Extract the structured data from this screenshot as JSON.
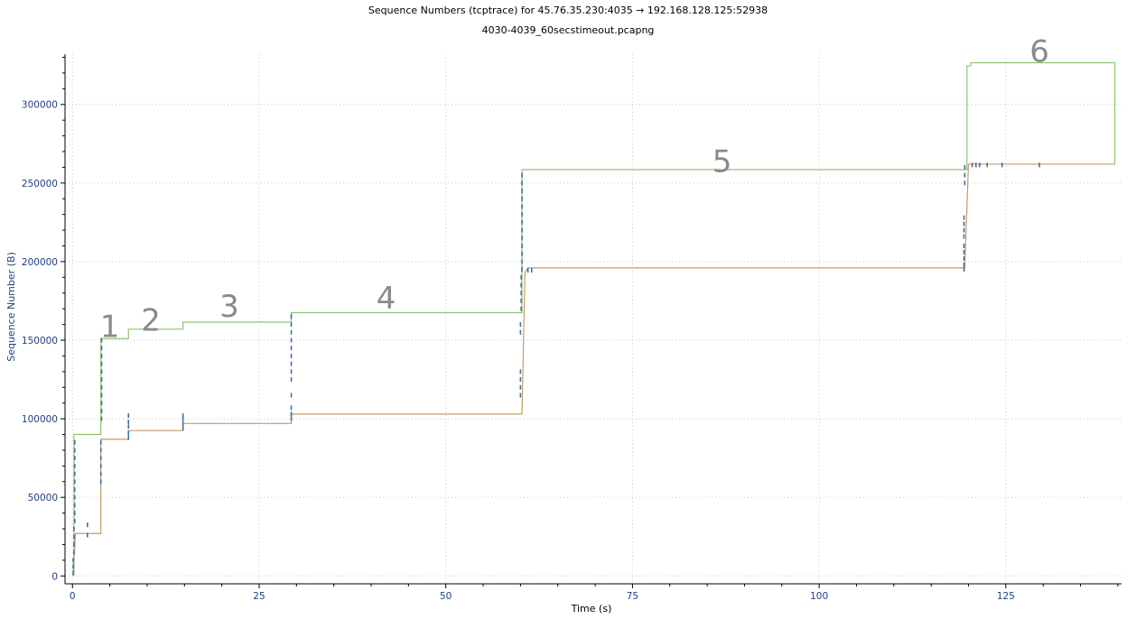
{
  "chart_data": {
    "type": "line",
    "title": "Sequence Numbers (tcptrace) for 45.76.35.230:4035 → 192.168.128.125:52938",
    "subtitle": "4030-4039_60secstimeout.pcapng",
    "xlabel": "Time (s)",
    "ylabel": "Sequence Number (B)",
    "xlim": [
      -1,
      140.5
    ],
    "ylim": [
      -5000,
      332000
    ],
    "x_ticks": [
      0,
      25,
      50,
      75,
      100,
      125
    ],
    "x_tick_labels": [
      "0",
      "25",
      "50",
      "75",
      "100",
      "125"
    ],
    "y_ticks": [
      0,
      50000,
      100000,
      150000,
      200000,
      250000,
      300000
    ],
    "y_tick_labels": [
      "0",
      "50000",
      "100000",
      "150000",
      "200000",
      "250000",
      "300000"
    ],
    "grid": true,
    "series": [
      {
        "color": "#8cc56a",
        "x": [
          0.2,
          0.2,
          3.8,
          3.8,
          7.5,
          7.5,
          14.8,
          14.8,
          29.3,
          29.3,
          60.2,
          60.2,
          119.8,
          119.8,
          120.3,
          120.3,
          139.6,
          139.6
        ],
        "y": [
          0,
          90000,
          90000,
          151000,
          151000,
          157000,
          157000,
          161500,
          161500,
          167500,
          167500,
          258500,
          258500,
          324500,
          324500,
          326500,
          326500,
          262000
        ]
      },
      {
        "color": "#c89968",
        "x": [
          0.1,
          0.4,
          3.8,
          3.8,
          7.5,
          7.5,
          14.8,
          14.8,
          29.3,
          29.3,
          60.2,
          60.6,
          61.0,
          119.5,
          120.0,
          139.6
        ],
        "y": [
          0,
          27000,
          27000,
          87000,
          87000,
          92500,
          92500,
          97000,
          97000,
          103000,
          103000,
          193000,
          196000,
          196000,
          262000,
          262000
        ]
      }
    ],
    "points_color": "#3d6f9e",
    "points": [
      [
        0.1,
        2000
      ],
      [
        0.1,
        6000
      ],
      [
        0.1,
        10000
      ],
      [
        0.2,
        15000
      ],
      [
        0.2,
        20000
      ],
      [
        0.2,
        25000
      ],
      [
        0.2,
        30000
      ],
      [
        0.3,
        35000
      ],
      [
        0.3,
        40000
      ],
      [
        0.3,
        45000
      ],
      [
        0.3,
        50000
      ],
      [
        0.3,
        55000
      ],
      [
        0.3,
        60000
      ],
      [
        0.3,
        65000
      ],
      [
        0.3,
        70000
      ],
      [
        0.3,
        75000
      ],
      [
        0.3,
        80000
      ],
      [
        0.3,
        85000
      ],
      [
        2.0,
        26000
      ],
      [
        2.0,
        32500
      ],
      [
        3.8,
        60000
      ],
      [
        3.8,
        65000
      ],
      [
        3.8,
        70000
      ],
      [
        3.8,
        75000
      ],
      [
        3.8,
        80000
      ],
      [
        3.8,
        85000
      ],
      [
        3.9,
        100000
      ],
      [
        3.9,
        105000
      ],
      [
        3.9,
        110000
      ],
      [
        3.9,
        115000
      ],
      [
        3.9,
        120000
      ],
      [
        3.9,
        125000
      ],
      [
        3.9,
        130000
      ],
      [
        3.9,
        135000
      ],
      [
        3.9,
        140000
      ],
      [
        3.9,
        145000
      ],
      [
        3.9,
        150000
      ],
      [
        7.5,
        88000
      ],
      [
        7.5,
        91000
      ],
      [
        7.5,
        95000
      ],
      [
        7.5,
        98000
      ],
      [
        7.5,
        102000
      ],
      [
        14.8,
        94000
      ],
      [
        14.8,
        97000
      ],
      [
        14.8,
        100000
      ],
      [
        14.8,
        102000
      ],
      [
        29.3,
        100000
      ],
      [
        29.3,
        103000
      ],
      [
        29.3,
        107000
      ],
      [
        29.3,
        115000
      ],
      [
        29.3,
        125000
      ],
      [
        29.3,
        130000
      ],
      [
        29.3,
        135000
      ],
      [
        29.3,
        140000
      ],
      [
        29.3,
        145000
      ],
      [
        29.3,
        150000
      ],
      [
        29.3,
        155000
      ],
      [
        29.3,
        160000
      ],
      [
        29.3,
        165000
      ],
      [
        60.0,
        115000
      ],
      [
        60.0,
        120000
      ],
      [
        60.0,
        125000
      ],
      [
        60.0,
        130000
      ],
      [
        60.0,
        155000
      ],
      [
        60.0,
        160000
      ],
      [
        60.1,
        170000
      ],
      [
        60.1,
        175000
      ],
      [
        60.1,
        180000
      ],
      [
        60.1,
        185000
      ],
      [
        60.1,
        190000
      ],
      [
        60.2,
        195000
      ],
      [
        60.2,
        200000
      ],
      [
        60.2,
        205000
      ],
      [
        60.2,
        210000
      ],
      [
        60.2,
        215000
      ],
      [
        60.2,
        220000
      ],
      [
        60.2,
        225000
      ],
      [
        60.2,
        230000
      ],
      [
        60.2,
        235000
      ],
      [
        60.2,
        240000
      ],
      [
        60.2,
        245000
      ],
      [
        60.2,
        250000
      ],
      [
        60.2,
        255000
      ],
      [
        61.0,
        194500
      ],
      [
        61.5,
        194500
      ],
      [
        119.4,
        195000
      ],
      [
        119.4,
        198000
      ],
      [
        119.4,
        202000
      ],
      [
        119.4,
        206000
      ],
      [
        119.4,
        210000
      ],
      [
        119.4,
        216000
      ],
      [
        119.4,
        220000
      ],
      [
        119.4,
        224000
      ],
      [
        119.4,
        228000
      ],
      [
        119.5,
        250000
      ],
      [
        119.5,
        255000
      ],
      [
        119.5,
        260000
      ],
      [
        120.5,
        261500
      ],
      [
        121.0,
        261500
      ],
      [
        121.5,
        261500
      ],
      [
        122.5,
        261500
      ],
      [
        124.5,
        261500
      ],
      [
        129.5,
        261500
      ]
    ],
    "annotations": [
      {
        "text": "1",
        "x": 5.0,
        "y": 152000
      },
      {
        "text": "2",
        "x": 10.5,
        "y": 156000
      },
      {
        "text": "3",
        "x": 21.0,
        "y": 165000
      },
      {
        "text": "4",
        "x": 42.0,
        "y": 170000
      },
      {
        "text": "5",
        "x": 87.0,
        "y": 257000
      },
      {
        "text": "6",
        "x": 129.5,
        "y": 327000
      }
    ]
  }
}
